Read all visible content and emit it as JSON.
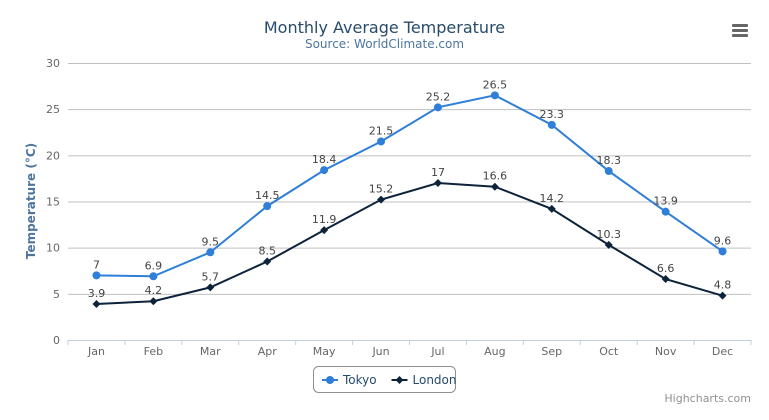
{
  "chart_data": {
    "type": "line",
    "title": "Monthly Average Temperature",
    "subtitle": "Source: WorldClimate.com",
    "xlabel": "",
    "ylabel": "Temperature (°C)",
    "ylim": [
      0,
      30
    ],
    "yticks": [
      0,
      5,
      10,
      15,
      20,
      25,
      30
    ],
    "grid": true,
    "legend_placement": "bottom",
    "categories": [
      "Jan",
      "Feb",
      "Mar",
      "Apr",
      "May",
      "Jun",
      "Jul",
      "Aug",
      "Sep",
      "Oct",
      "Nov",
      "Dec"
    ],
    "series": [
      {
        "name": "Tokyo",
        "color": "#2f7ed8",
        "marker": "circle",
        "values": [
          7,
          6.9,
          9.5,
          14.5,
          18.4,
          21.5,
          25.2,
          26.5,
          23.3,
          18.3,
          13.9,
          9.6
        ]
      },
      {
        "name": "London",
        "color": "#0d233a",
        "marker": "diamond",
        "values": [
          3.9,
          4.2,
          5.7,
          8.5,
          11.9,
          15.2,
          17,
          16.6,
          14.2,
          10.3,
          6.6,
          4.8
        ]
      }
    ]
  },
  "ui": {
    "menu_icon": "hamburger-menu-icon",
    "credits": "Highcharts.com",
    "title_color": "#274b6d",
    "subtitle_color": "#4d759e"
  }
}
